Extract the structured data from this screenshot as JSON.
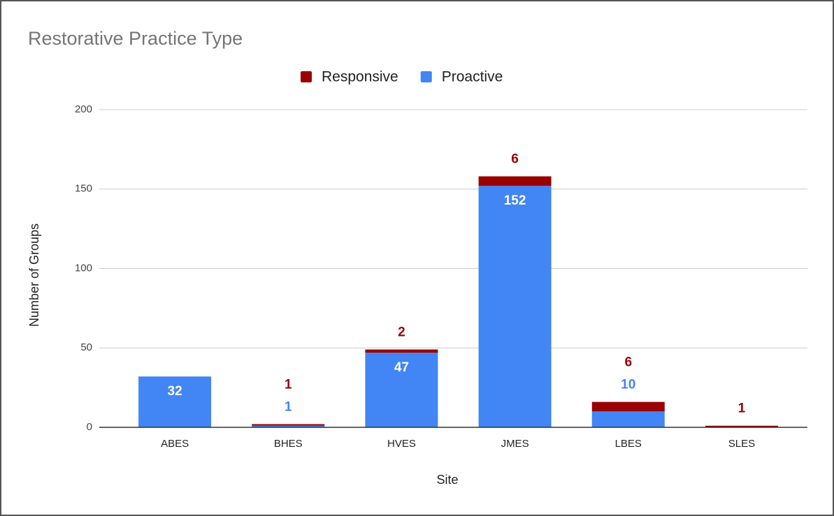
{
  "chart_data": {
    "type": "stacked_bar",
    "title": "Restorative Practice Type",
    "x_label": "Site",
    "y_label": "Number of Groups",
    "categories": [
      "ABES",
      "BHES",
      "HVES",
      "JMES",
      "LBES",
      "SLES"
    ],
    "series": [
      {
        "name": "Responsive",
        "color": "#990000",
        "values": [
          null,
          1,
          2,
          6,
          6,
          1
        ]
      },
      {
        "name": "Proactive",
        "color": "#4285f4",
        "values": [
          32,
          1,
          47,
          152,
          10,
          null
        ]
      }
    ],
    "ylim": [
      0,
      200
    ],
    "yticks": [
      0,
      50,
      100,
      150,
      200
    ],
    "grid": true,
    "legend": "top"
  }
}
